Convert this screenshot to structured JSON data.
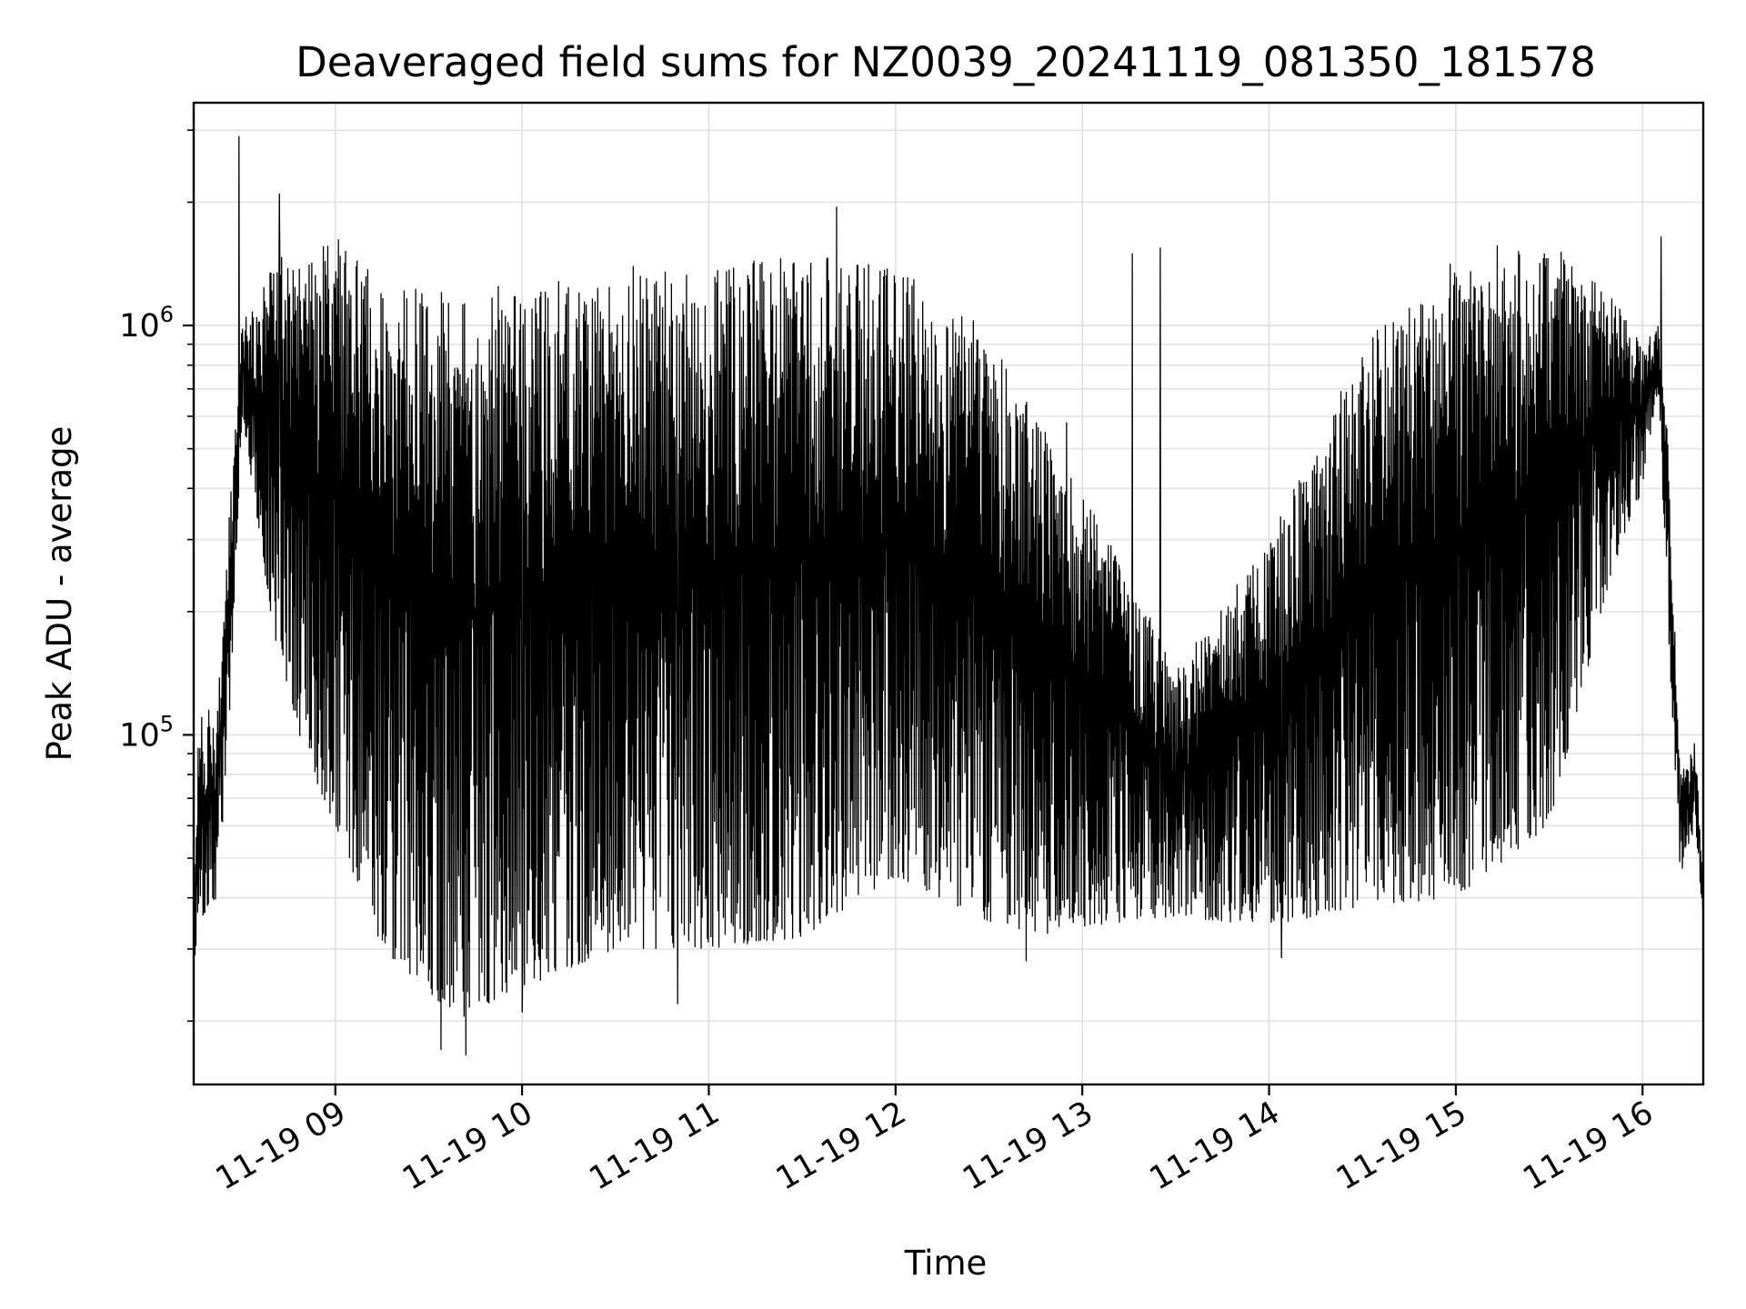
{
  "chart_data": {
    "type": "line",
    "title": "Deaveraged field sums for NZ0039_20241119_081350_181578",
    "xlabel": "Time",
    "ylabel": "Peak ADU - average",
    "yscale": "log",
    "xlim": [
      "2024-11-19T08:14:30",
      "2024-11-19T16:19:30"
    ],
    "ylim": [
      14000,
      3500000
    ],
    "grid": true,
    "legend": "none",
    "line_color": "#000000",
    "x_ticks": [
      {
        "value": "2024-11-19T09:00:00",
        "label": "11-19 09"
      },
      {
        "value": "2024-11-19T10:00:00",
        "label": "11-19 10"
      },
      {
        "value": "2024-11-19T11:00:00",
        "label": "11-19 11"
      },
      {
        "value": "2024-11-19T12:00:00",
        "label": "11-19 12"
      },
      {
        "value": "2024-11-19T13:00:00",
        "label": "11-19 13"
      },
      {
        "value": "2024-11-19T14:00:00",
        "label": "11-19 14"
      },
      {
        "value": "2024-11-19T15:00:00",
        "label": "11-19 15"
      },
      {
        "value": "2024-11-19T16:00:00",
        "label": "11-19 16"
      }
    ],
    "y_ticks": [
      {
        "value": 100000,
        "base": "10",
        "exp": "5"
      },
      {
        "value": 1000000,
        "base": "10",
        "exp": "6"
      }
    ],
    "series": [
      {
        "envelope": [
          {
            "t": "2024-11-19T08:14:30",
            "hi": 40000,
            "lo": 25000
          },
          {
            "t": "2024-11-19T08:16:00",
            "hi": 110000,
            "lo": 35000
          },
          {
            "t": "2024-11-19T08:22:00",
            "hi": 120000,
            "lo": 40000
          },
          {
            "t": "2024-11-19T08:26:00",
            "hi": 350000,
            "lo": 100000
          },
          {
            "t": "2024-11-19T08:30:00",
            "hi": 1000000,
            "lo": 600000
          },
          {
            "t": "2024-11-19T08:40:00",
            "hi": 1500000,
            "lo": 180000
          },
          {
            "t": "2024-11-19T08:50:00",
            "hi": 1400000,
            "lo": 90000
          },
          {
            "t": "2024-11-19T09:00:00",
            "hi": 1700000,
            "lo": 60000
          },
          {
            "t": "2024-11-19T09:15:00",
            "hi": 1300000,
            "lo": 30000
          },
          {
            "t": "2024-11-19T09:40:00",
            "hi": 1200000,
            "lo": 20000
          },
          {
            "t": "2024-11-19T10:00:00",
            "hi": 1300000,
            "lo": 24000
          },
          {
            "t": "2024-11-19T10:30:00",
            "hi": 1400000,
            "lo": 30000
          },
          {
            "t": "2024-11-19T11:00:00",
            "hi": 1400000,
            "lo": 30000
          },
          {
            "t": "2024-11-19T11:30:00",
            "hi": 1500000,
            "lo": 32000
          },
          {
            "t": "2024-11-19T12:00:00",
            "hi": 1400000,
            "lo": 45000
          },
          {
            "t": "2024-11-19T12:30:00",
            "hi": 1000000,
            "lo": 35000
          },
          {
            "t": "2024-11-19T12:45:00",
            "hi": 600000,
            "lo": 32000
          },
          {
            "t": "2024-11-19T13:00:00",
            "hi": 400000,
            "lo": 34000
          },
          {
            "t": "2024-11-19T13:30:00",
            "hi": 150000,
            "lo": 36000
          },
          {
            "t": "2024-11-19T14:00:00",
            "hi": 300000,
            "lo": 34000
          },
          {
            "t": "2024-11-19T14:30:00",
            "hi": 900000,
            "lo": 38000
          },
          {
            "t": "2024-11-19T15:00:00",
            "hi": 1500000,
            "lo": 40000
          },
          {
            "t": "2024-11-19T15:30:00",
            "hi": 1700000,
            "lo": 60000
          },
          {
            "t": "2024-11-19T15:50:00",
            "hi": 1200000,
            "lo": 250000
          },
          {
            "t": "2024-11-19T16:00:00",
            "hi": 900000,
            "lo": 400000
          },
          {
            "t": "2024-11-19T16:05:00",
            "hi": 1000000,
            "lo": 700000
          },
          {
            "t": "2024-11-19T16:08:00",
            "hi": 600000,
            "lo": 200000
          },
          {
            "t": "2024-11-19T16:12:00",
            "hi": 80000,
            "lo": 45000
          },
          {
            "t": "2024-11-19T16:17:00",
            "hi": 100000,
            "lo": 60000
          },
          {
            "t": "2024-11-19T16:19:30",
            "hi": 40000,
            "lo": 35000
          }
        ],
        "peaks": [
          {
            "t": "2024-11-19T08:29:00",
            "y": 2900000
          },
          {
            "t": "2024-11-19T08:42:00",
            "y": 2100000
          },
          {
            "t": "2024-11-19T11:41:00",
            "y": 1950000
          },
          {
            "t": "2024-11-19T12:55:00",
            "y": 580000
          },
          {
            "t": "2024-11-19T13:16:00",
            "y": 1500000
          },
          {
            "t": "2024-11-19T13:25:00",
            "y": 1550000
          },
          {
            "t": "2024-11-19T16:06:00",
            "y": 1650000
          }
        ],
        "troughs": [
          {
            "t": "2024-11-19T09:34:00",
            "y": 17000
          },
          {
            "t": "2024-11-19T09:42:00",
            "y": 16500
          },
          {
            "t": "2024-11-19T10:00:00",
            "y": 21000
          },
          {
            "t": "2024-11-19T10:50:00",
            "y": 22000
          },
          {
            "t": "2024-11-19T12:42:00",
            "y": 28000
          },
          {
            "t": "2024-11-19T14:04:00",
            "y": 28500
          }
        ]
      }
    ]
  }
}
